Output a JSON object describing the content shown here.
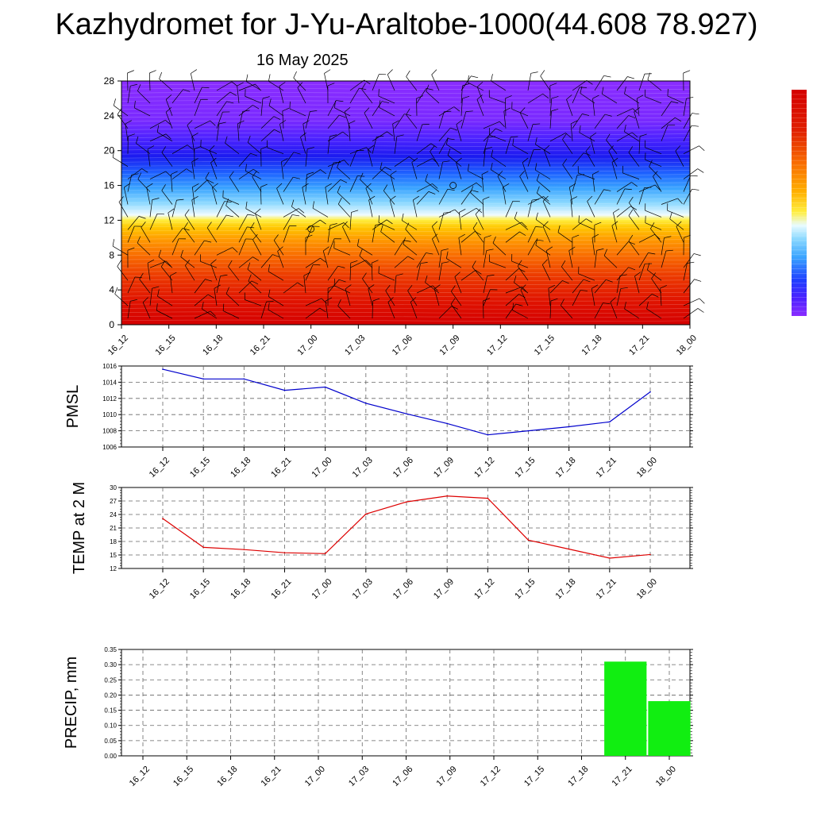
{
  "title": "Kazhydromet for J-Yu-Araltobe-1000(44.608 78.927)",
  "date": "16 May 2025",
  "chart_data": [
    {
      "type": "heatmap",
      "x_ticks": [
        "16_12",
        "16_15",
        "16_18",
        "16_21",
        "17_00",
        "17_03",
        "17_06",
        "17_09",
        "17_12",
        "17_15",
        "17_18",
        "17_21",
        "18_00"
      ],
      "y_ticks": [
        "0",
        "4",
        "8",
        "12",
        "16",
        "20",
        "24",
        "28"
      ],
      "ylim": [
        0,
        28
      ],
      "colorbar_colors": [
        "#d90000",
        "#e52200",
        "#f25000",
        "#ff7a00",
        "#ffa600",
        "#ffd000",
        "#ffef30",
        "#f5ffe0",
        "#b0e8ff",
        "#60c8ff",
        "#2f9cff",
        "#1f60ff",
        "#2020ee",
        "#5a22ff",
        "#8a2bff"
      ],
      "stations_circle_markers": [
        {
          "x": "17_00",
          "y": 11
        },
        {
          "x": "17_09",
          "y": 16
        }
      ]
    },
    {
      "type": "line",
      "ylabel": "PMSL",
      "categories": [
        "16_12",
        "16_15",
        "16_18",
        "16_21",
        "17_00",
        "17_03",
        "17_06",
        "17_09",
        "17_12",
        "17_15",
        "17_18",
        "17_21",
        "18_00"
      ],
      "ticks": [
        "1006",
        "1008",
        "1010",
        "1012",
        "1014",
        "1016"
      ],
      "ylim": [
        1006,
        1016
      ],
      "color": "#0000cc",
      "values": [
        1015.6,
        1014.4,
        1014.4,
        1013.0,
        1013.4,
        1011.4,
        1010.1,
        1008.9,
        1007.5,
        1008.0,
        1008.5,
        1009.1,
        1012.8
      ]
    },
    {
      "type": "line",
      "ylabel": "TEMP at 2 M",
      "categories": [
        "16_12",
        "16_15",
        "16_18",
        "16_21",
        "17_00",
        "17_03",
        "17_06",
        "17_09",
        "17_12",
        "17_15",
        "17_18",
        "17_21",
        "18_00"
      ],
      "ticks": [
        "12",
        "15",
        "18",
        "21",
        "24",
        "27",
        "30"
      ],
      "ylim": [
        12,
        30
      ],
      "color": "#dd0000",
      "values": [
        23.1,
        16.7,
        16.2,
        15.5,
        15.3,
        24.1,
        26.8,
        28.1,
        27.6,
        18.3,
        16.3,
        14.3,
        15.1
      ]
    },
    {
      "type": "bar",
      "ylabel": "PRECIP, mm",
      "categories": [
        "16_12",
        "16_15",
        "16_18",
        "16_21",
        "17_00",
        "17_03",
        "17_06",
        "17_09",
        "17_12",
        "17_15",
        "17_18",
        "17_21",
        "18_00"
      ],
      "ticks": [
        "0.00",
        "0.05",
        "0.10",
        "0.15",
        "0.20",
        "0.25",
        "0.30",
        "0.35"
      ],
      "ylim": [
        0,
        0.35
      ],
      "color": "#11ee11",
      "values": [
        0,
        0,
        0,
        0,
        0,
        0,
        0,
        0,
        0,
        0,
        0,
        0.31,
        0.18
      ]
    }
  ]
}
